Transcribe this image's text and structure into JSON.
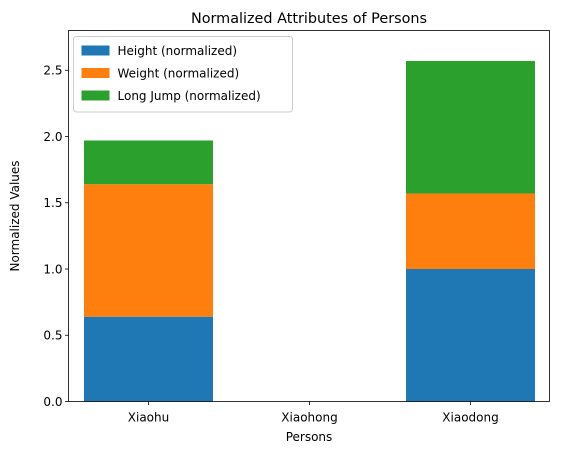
{
  "chart_data": {
    "type": "bar",
    "stacked": true,
    "title": "Normalized Attributes of Persons",
    "xlabel": "Persons",
    "ylabel": "Normalized Values",
    "categories": [
      "Xiaohu",
      "Xiaohong",
      "Xiaodong"
    ],
    "ylim": [
      0,
      2.8
    ],
    "yticks": [
      "0.0",
      "0.5",
      "1.0",
      "1.5",
      "2.0",
      "2.5"
    ],
    "series": [
      {
        "name": "Height (normalized)",
        "color": "#1f77b4",
        "values": [
          0.64,
          0.0,
          1.0
        ]
      },
      {
        "name": "Weight (normalized)",
        "color": "#ff7f0e",
        "values": [
          1.0,
          0.0,
          0.57
        ]
      },
      {
        "name": "Long Jump (normalized)",
        "color": "#2ca02c",
        "values": [
          0.33,
          0.0,
          1.0
        ]
      }
    ],
    "legend_position": "top-left",
    "grid": false
  }
}
